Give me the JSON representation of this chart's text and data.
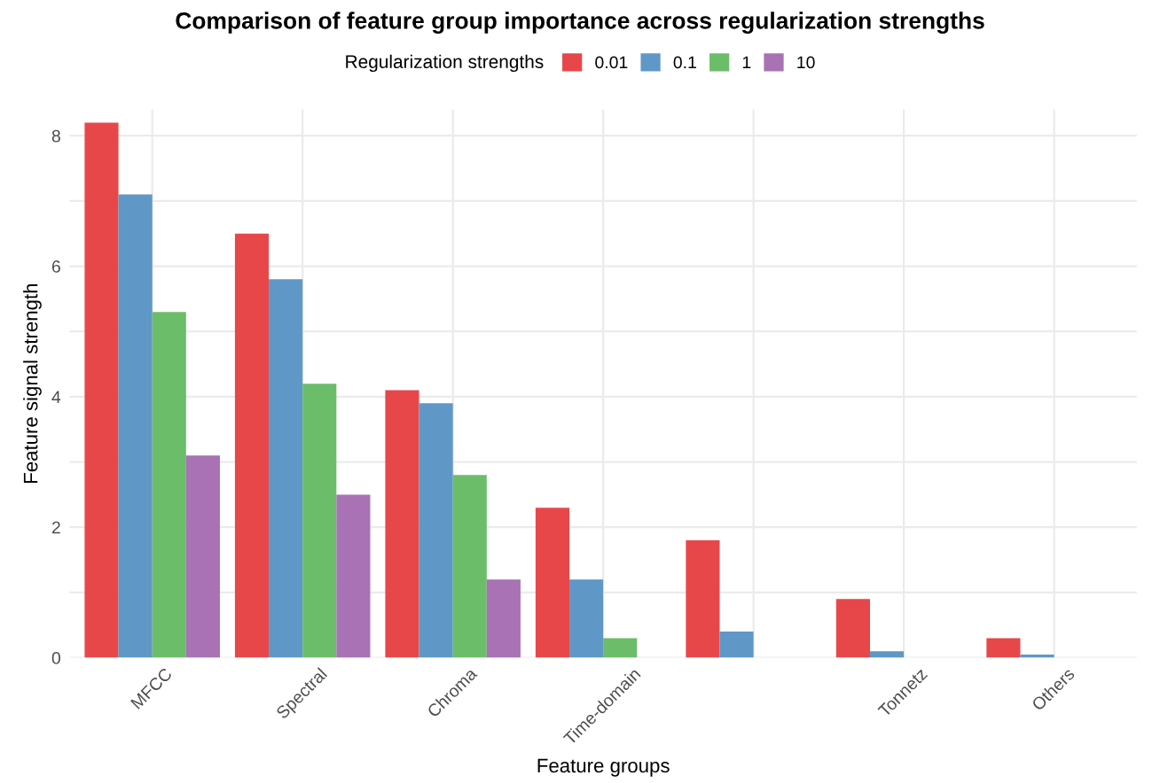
{
  "chart_data": {
    "type": "bar",
    "title": "Comparison of feature group importance across regularization strengths",
    "xlabel": "Feature groups",
    "ylabel": "Feature signal strength",
    "legend_title": "Regularization strengths",
    "categories": [
      "MFCC",
      "Spectral",
      "Chroma",
      "Time-domain",
      null,
      "Tonnetz",
      "Others"
    ],
    "series": [
      {
        "name": "0.01",
        "color": "#e8474a",
        "values": [
          8.2,
          6.5,
          4.1,
          2.3,
          1.8,
          0.9,
          0.3
        ]
      },
      {
        "name": "0.1",
        "color": "#5f98c6",
        "values": [
          7.1,
          5.8,
          3.9,
          1.2,
          0.4,
          0.1,
          0.05
        ]
      },
      {
        "name": "1",
        "color": "#6cbd6a",
        "values": [
          5.3,
          4.2,
          2.8,
          0.3,
          null,
          null,
          null
        ]
      },
      {
        "name": "10",
        "color": "#a872b5",
        "values": [
          3.1,
          2.5,
          1.2,
          null,
          null,
          null,
          null
        ]
      }
    ],
    "ylim": [
      0,
      8.4
    ],
    "yticks": [
      0,
      {
        "value": 1,
        "label": null
      },
      2,
      {
        "value": 3,
        "label": null
      },
      4,
      {
        "value": 5,
        "label": null
      },
      6,
      {
        "value": 7,
        "label": null
      },
      8
    ],
    "grid": true,
    "legend": "top"
  }
}
